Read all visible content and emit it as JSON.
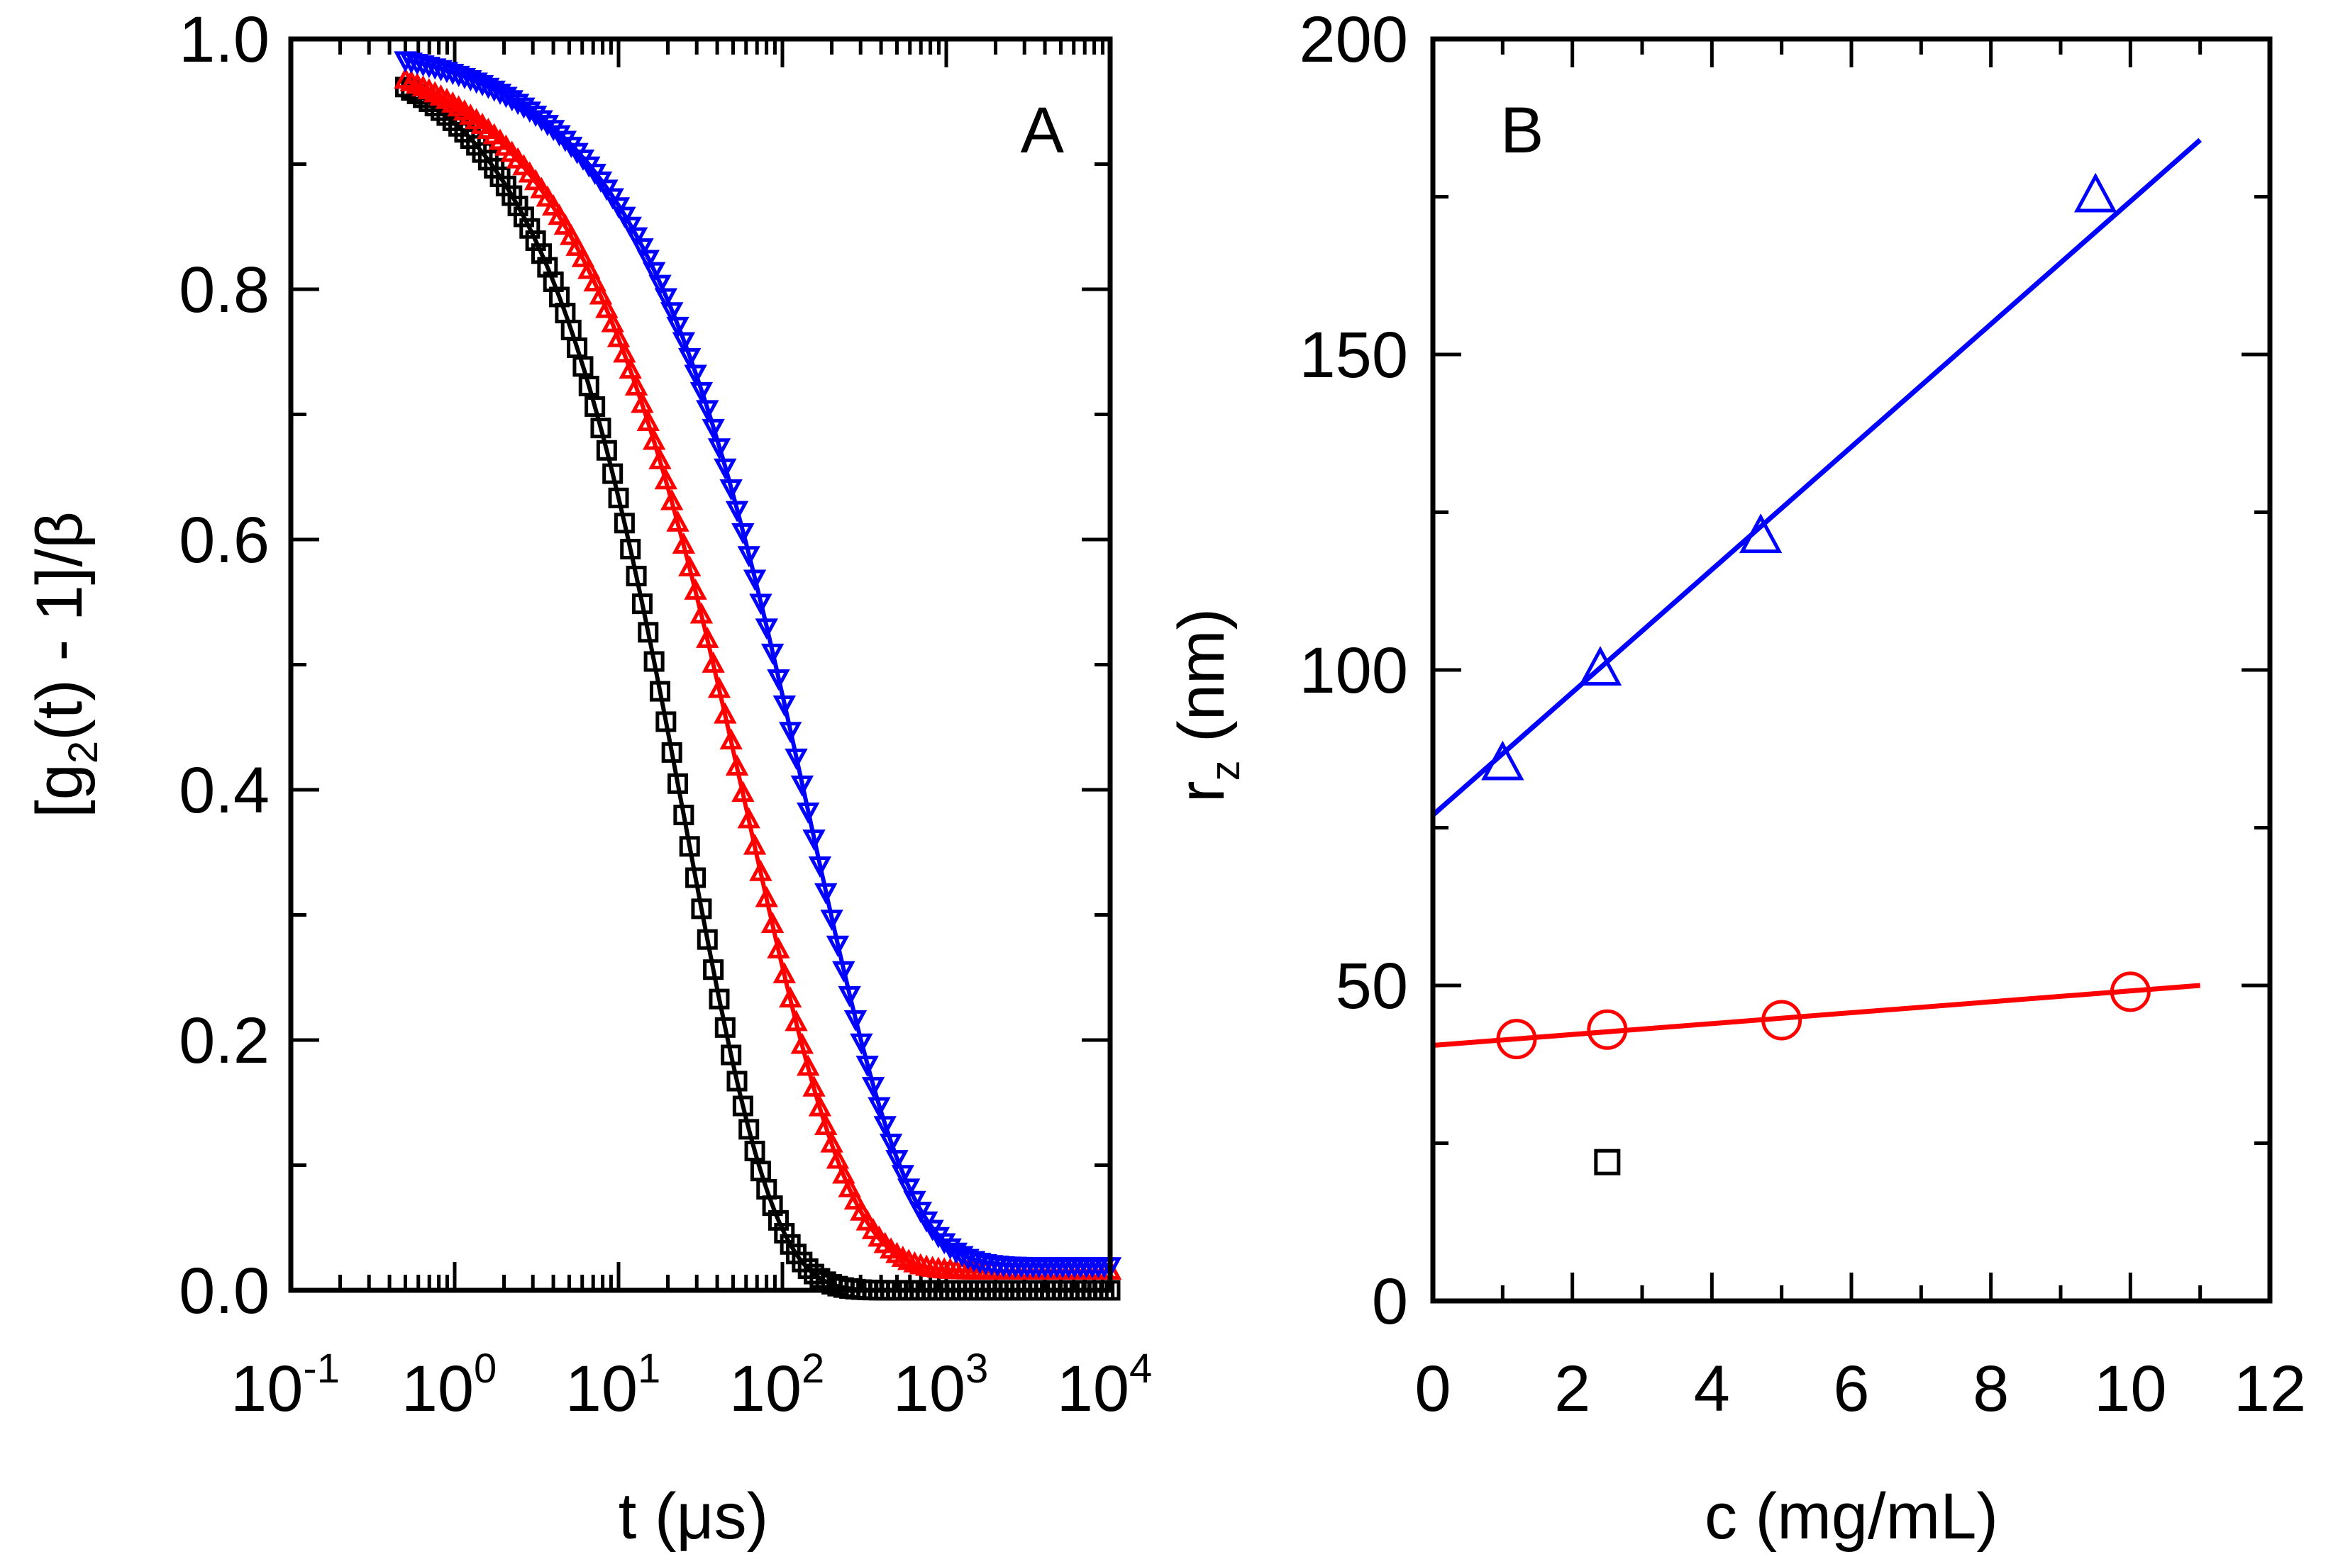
{
  "chart_data": [
    {
      "panel": "A",
      "type": "scatter",
      "panel_label": "A",
      "xlabel": "t (μs)",
      "ylabel": "[g2(t) - 1]/β",
      "xscale": "log",
      "xlim": [
        0.1,
        10000
      ],
      "ylim": [
        0,
        1.0
      ],
      "x_ticks": [
        {
          "base": "10",
          "exp": "-1",
          "value": 0.1
        },
        {
          "base": "10",
          "exp": "0",
          "value": 1
        },
        {
          "base": "10",
          "exp": "1",
          "value": 10
        },
        {
          "base": "10",
          "exp": "2",
          "value": 100
        },
        {
          "base": "10",
          "exp": "3",
          "value": 1000
        },
        {
          "base": "10",
          "exp": "4",
          "value": 10000
        }
      ],
      "y_tick_labels": [
        "0.0",
        "0.2",
        "0.4",
        "0.6",
        "0.8",
        "1.0"
      ],
      "y_ticks": [
        0,
        0.2,
        0.4,
        0.6,
        0.8,
        1.0
      ],
      "grid": false,
      "series": [
        {
          "color": "#000000",
          "marker": "square",
          "decay_time_us": 26,
          "stretch": 0.82,
          "baseline": 0.0
        },
        {
          "color": "#ff0000",
          "marker": "triangle-up",
          "decay_time_us": 62,
          "stretch": 0.7,
          "baseline": 0.015
        },
        {
          "color": "#0000ff",
          "marker": "triangle-down",
          "decay_time_us": 145,
          "stretch": 0.72,
          "baseline": 0.02
        }
      ]
    },
    {
      "panel": "B",
      "type": "scatter",
      "panel_label": "B",
      "xlabel": "c (mg/mL)",
      "ylabel": "rz (nm)",
      "ylabel_main": "r",
      "ylabel_sub": "z",
      "ylabel_rest": " (nm)",
      "xlim": [
        0,
        12
      ],
      "ylim": [
        0,
        200
      ],
      "x_ticks": [
        0,
        2,
        4,
        6,
        8,
        10,
        12
      ],
      "y_ticks": [
        0,
        50,
        100,
        150,
        200
      ],
      "grid": false,
      "series": [
        {
          "color": "#0000ff",
          "marker": "triangle-up",
          "points": [
            [
              1.0,
              85
            ],
            [
              2.4,
              100
            ],
            [
              4.7,
              121
            ],
            [
              9.5,
              175
            ]
          ],
          "fit_line": [
            [
              0,
              77
            ],
            [
              11,
              184
            ]
          ]
        },
        {
          "color": "#ff0000",
          "marker": "circle",
          "points": [
            [
              1.2,
              41.5
            ],
            [
              2.5,
              43
            ],
            [
              5.0,
              44.5
            ],
            [
              10.0,
              49
            ]
          ],
          "fit_line": [
            [
              0,
              40.5
            ],
            [
              11,
              50
            ]
          ]
        },
        {
          "color": "#000000",
          "marker": "square",
          "points": [
            [
              2.5,
              22
            ]
          ]
        }
      ]
    }
  ]
}
